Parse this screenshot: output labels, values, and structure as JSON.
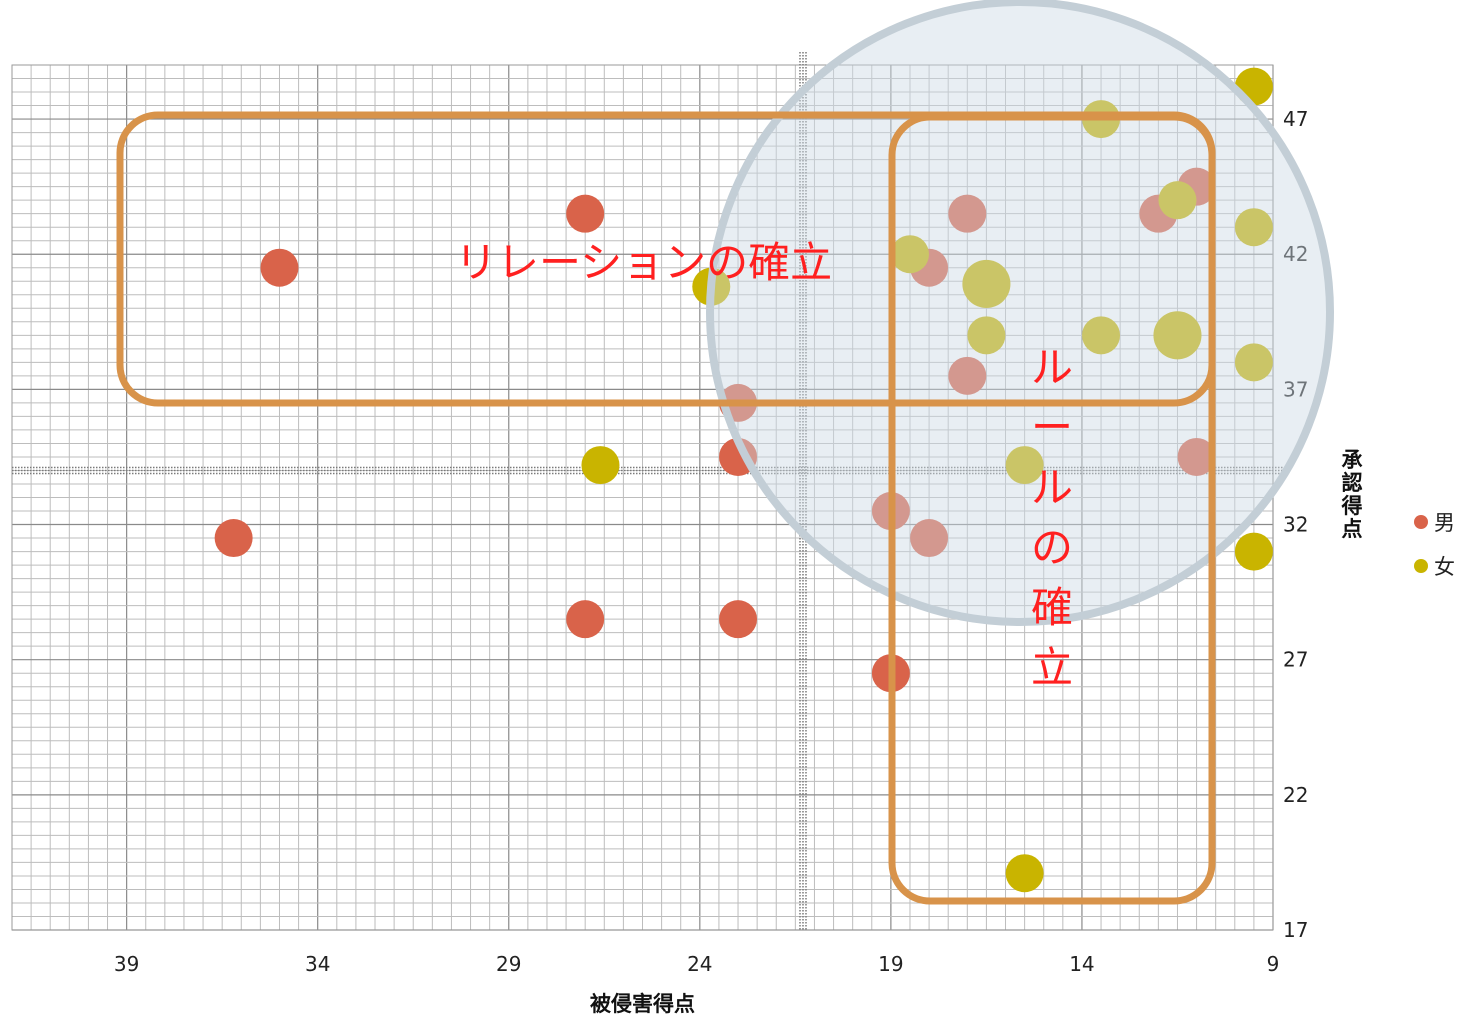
{
  "chart_data": {
    "type": "scatter",
    "xlabel": "被侵害得点",
    "ylabel": "承認得点",
    "x_reversed": true,
    "xlim": [
      9,
      42
    ],
    "ylim": [
      17,
      49
    ],
    "x_ticks": [
      39,
      34,
      29,
      24,
      19,
      14,
      9
    ],
    "y_ticks": [
      17,
      22,
      27,
      32,
      37,
      42,
      47
    ],
    "minor_grid": true,
    "legend_position": "right",
    "series": [
      {
        "name": "男",
        "color": "#d9634a",
        "points": [
          {
            "x": 35,
            "y": 41.5,
            "s": 1
          },
          {
            "x": 36.2,
            "y": 31.5,
            "s": 1
          },
          {
            "x": 27,
            "y": 43.5,
            "s": 1
          },
          {
            "x": 27,
            "y": 28.5,
            "s": 1
          },
          {
            "x": 23,
            "y": 36.5,
            "s": 1
          },
          {
            "x": 23,
            "y": 34.5,
            "s": 1
          },
          {
            "x": 23,
            "y": 28.5,
            "s": 1
          },
          {
            "x": 19,
            "y": 32.5,
            "s": 1
          },
          {
            "x": 19,
            "y": 26.5,
            "s": 1
          },
          {
            "x": 18,
            "y": 31.5,
            "s": 1
          },
          {
            "x": 18,
            "y": 41.5,
            "s": 1
          },
          {
            "x": 17,
            "y": 43.5,
            "s": 1
          },
          {
            "x": 17,
            "y": 37.5,
            "s": 1
          },
          {
            "x": 12,
            "y": 43.5,
            "s": 1
          },
          {
            "x": 11,
            "y": 44.5,
            "s": 1
          },
          {
            "x": 11,
            "y": 34.5,
            "s": 1
          }
        ]
      },
      {
        "name": "女",
        "color": "#c9b400",
        "points": [
          {
            "x": 9.5,
            "y": 48.2,
            "s": 1
          },
          {
            "x": 13.5,
            "y": 47,
            "s": 1
          },
          {
            "x": 11.5,
            "y": 44,
            "s": 1
          },
          {
            "x": 9.5,
            "y": 43,
            "s": 1
          },
          {
            "x": 18.5,
            "y": 42,
            "s": 1
          },
          {
            "x": 16.5,
            "y": 40.9,
            "s": 1.6
          },
          {
            "x": 23.7,
            "y": 40.8,
            "s": 1
          },
          {
            "x": 16.5,
            "y": 39,
            "s": 1
          },
          {
            "x": 13.5,
            "y": 39,
            "s": 1
          },
          {
            "x": 11.5,
            "y": 39,
            "s": 1.6
          },
          {
            "x": 9.5,
            "y": 38,
            "s": 1
          },
          {
            "x": 26.6,
            "y": 34.2,
            "s": 1
          },
          {
            "x": 15.5,
            "y": 34.2,
            "s": 1
          },
          {
            "x": 9.5,
            "y": 31,
            "s": 1
          },
          {
            "x": 15.5,
            "y": 19.1,
            "s": 1
          }
        ]
      }
    ],
    "annotations": [
      {
        "text": "リレーションの確立",
        "orientation": "horizontal"
      },
      {
        "text": "ルールの確立",
        "orientation": "vertical"
      }
    ]
  }
}
